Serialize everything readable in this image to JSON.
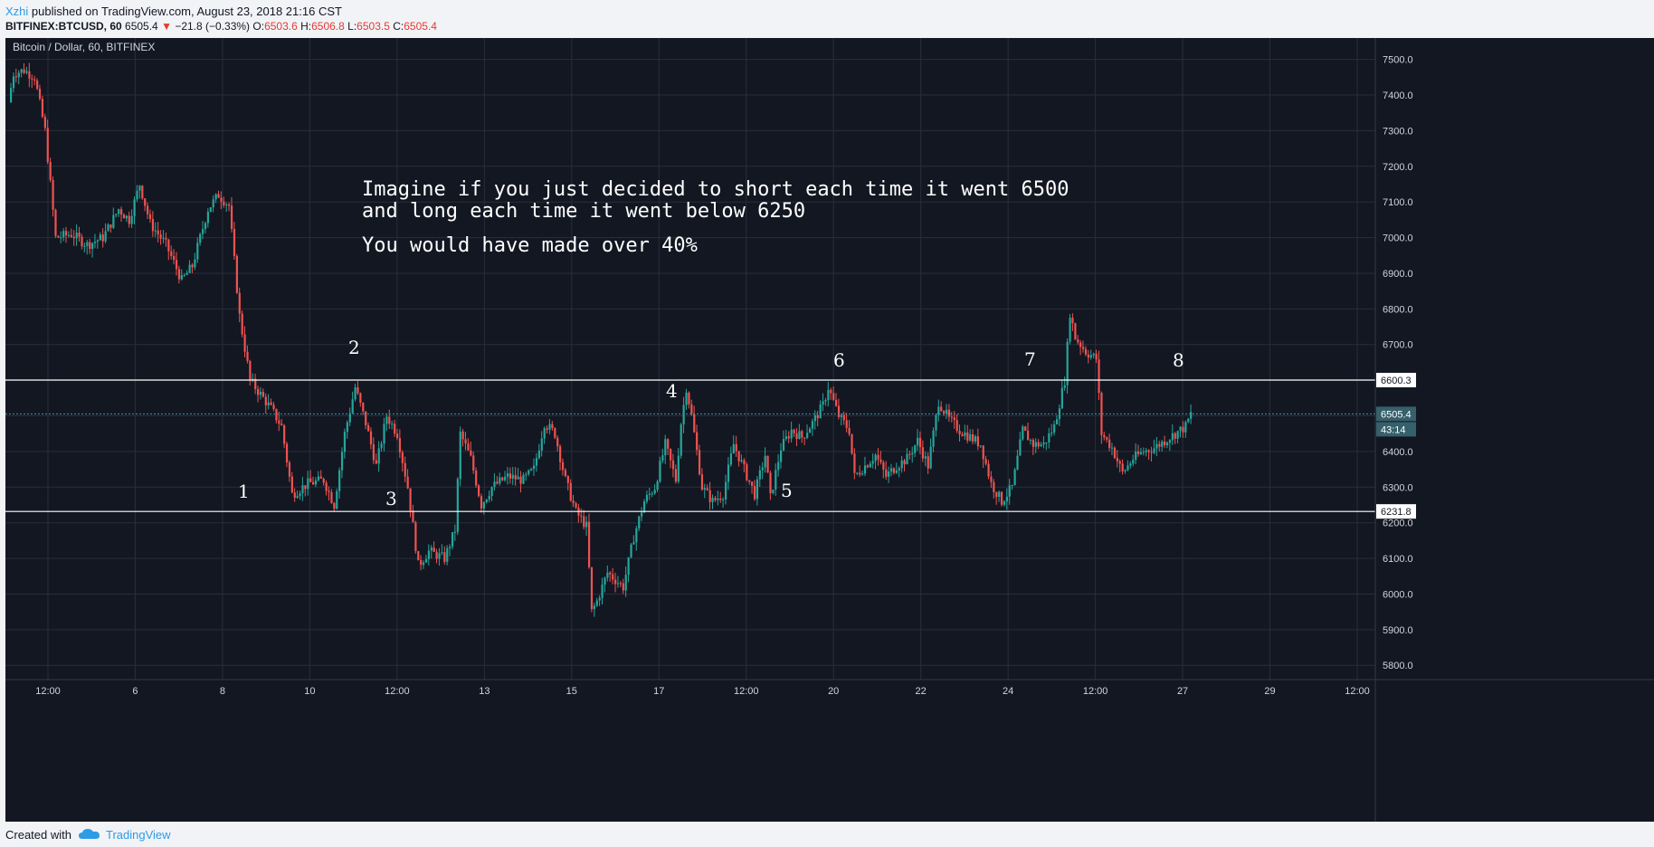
{
  "header": {
    "author": "Xzhi",
    "published": " published on TradingView.com, August 23, 2018 21:16 CST",
    "symbol": "BITFINEX:BTCUSD, 60",
    "last": "6505.4",
    "down_arrow": "▼",
    "change": "−21.8 (−0.33%)",
    "o_label": "O:",
    "o_value": "6503.6",
    "h_label": "H:",
    "h_value": "6506.8",
    "l_label": "L:",
    "l_value": "6503.5",
    "c_label": "C:",
    "c_value": "6505.4"
  },
  "footer": {
    "created_with": "Created with",
    "brand": "TradingView",
    "logo_icon": "tradingview-cloud-logo-icon"
  },
  "colors": {
    "background": "#131722",
    "grid": "#2a2e39",
    "up": "#26a69a",
    "down": "#ef5350",
    "level_line": "#ffffff",
    "price_tag": "#36606b"
  },
  "chart_data": {
    "type": "candlestick",
    "title": "Bitcoin / Dollar, 60, BITFINEX",
    "ylim": [
      5760,
      7560
    ],
    "y_ticks": [
      "7500.0",
      "7400.0",
      "7300.0",
      "7200.0",
      "7100.0",
      "7000.0",
      "6900.0",
      "6800.0",
      "6700.0",
      "6600.0",
      "6500.0",
      "6400.0",
      "6300.0",
      "6200.0",
      "6100.0",
      "6000.0",
      "5900.0",
      "5800.0"
    ],
    "x_ticks": [
      "12:00",
      "6",
      "8",
      "10",
      "12:00",
      "13",
      "15",
      "17",
      "12:00",
      "20",
      "22",
      "24",
      "12:00",
      "27",
      "29",
      "12:00"
    ],
    "price_path": [
      [
        0,
        7380
      ],
      [
        1,
        7460
      ],
      [
        3,
        7470
      ],
      [
        5,
        7450
      ],
      [
        7,
        7300
      ],
      [
        9,
        7000
      ],
      [
        12,
        7010
      ],
      [
        15,
        6980
      ],
      [
        18,
        7000
      ],
      [
        21,
        7080
      ],
      [
        23,
        7050
      ],
      [
        25,
        7150
      ],
      [
        27,
        7040
      ],
      [
        30,
        6980
      ],
      [
        33,
        6880
      ],
      [
        35,
        6920
      ],
      [
        38,
        7080
      ],
      [
        40,
        7120
      ],
      [
        42,
        7090
      ],
      [
        44,
        6780
      ],
      [
        46,
        6600
      ],
      [
        48,
        6560
      ],
      [
        50,
        6520
      ],
      [
        52,
        6470
      ],
      [
        54,
        6280
      ],
      [
        57,
        6310
      ],
      [
        60,
        6320
      ],
      [
        62,
        6250
      ],
      [
        64,
        6450
      ],
      [
        66,
        6580
      ],
      [
        68,
        6480
      ],
      [
        70,
        6360
      ],
      [
        72,
        6500
      ],
      [
        74,
        6450
      ],
      [
        76,
        6300
      ],
      [
        78,
        6080
      ],
      [
        80,
        6120
      ],
      [
        83,
        6100
      ],
      [
        85,
        6180
      ],
      [
        86,
        6450
      ],
      [
        88,
        6380
      ],
      [
        90,
        6250
      ],
      [
        92,
        6300
      ],
      [
        95,
        6330
      ],
      [
        98,
        6320
      ],
      [
        100,
        6350
      ],
      [
        102,
        6480
      ],
      [
        104,
        6450
      ],
      [
        106,
        6320
      ],
      [
        108,
        6230
      ],
      [
        110,
        6190
      ],
      [
        111,
        5950
      ],
      [
        112,
        5980
      ],
      [
        114,
        6060
      ],
      [
        117,
        6020
      ],
      [
        119,
        6160
      ],
      [
        121,
        6260
      ],
      [
        123,
        6300
      ],
      [
        125,
        6420
      ],
      [
        127,
        6320
      ],
      [
        128,
        6480
      ],
      [
        129,
        6580
      ],
      [
        130,
        6500
      ],
      [
        132,
        6300
      ],
      [
        134,
        6260
      ],
      [
        136,
        6280
      ],
      [
        138,
        6420
      ],
      [
        140,
        6350
      ],
      [
        142,
        6280
      ],
      [
        144,
        6390
      ],
      [
        145,
        6270
      ],
      [
        147,
        6410
      ],
      [
        149,
        6460
      ],
      [
        151,
        6440
      ],
      [
        153,
        6480
      ],
      [
        155,
        6530
      ],
      [
        156,
        6580
      ],
      [
        158,
        6500
      ],
      [
        160,
        6460
      ],
      [
        161,
        6330
      ],
      [
        163,
        6360
      ],
      [
        165,
        6390
      ],
      [
        167,
        6330
      ],
      [
        169,
        6360
      ],
      [
        171,
        6380
      ],
      [
        173,
        6430
      ],
      [
        175,
        6360
      ],
      [
        177,
        6540
      ],
      [
        179,
        6490
      ],
      [
        181,
        6460
      ],
      [
        183,
        6440
      ],
      [
        185,
        6420
      ],
      [
        187,
        6310
      ],
      [
        189,
        6260
      ],
      [
        191,
        6300
      ],
      [
        193,
        6460
      ],
      [
        195,
        6420
      ],
      [
        197,
        6420
      ],
      [
        199,
        6470
      ],
      [
        201,
        6600
      ],
      [
        202,
        6790
      ],
      [
        203,
        6720
      ],
      [
        205,
        6680
      ],
      [
        207,
        6660
      ],
      [
        208,
        6450
      ],
      [
        210,
        6410
      ],
      [
        212,
        6340
      ],
      [
        214,
        6380
      ],
      [
        216,
        6400
      ],
      [
        218,
        6410
      ],
      [
        220,
        6430
      ],
      [
        222,
        6450
      ],
      [
        224,
        6470
      ],
      [
        225,
        6505
      ]
    ],
    "horizontal_lines": [
      6600.3,
      6231.8
    ],
    "price_labels": [
      "6600.3",
      "6505.4",
      "43:14",
      "6231.8"
    ],
    "annotation_text": [
      "Imagine if you just decided to short each time it went 6500",
      "and long each time it went below 6250",
      "You would have made over 40%"
    ],
    "markers": [
      "1",
      "2",
      "3",
      "4",
      "5",
      "6",
      "7",
      "8"
    ]
  }
}
